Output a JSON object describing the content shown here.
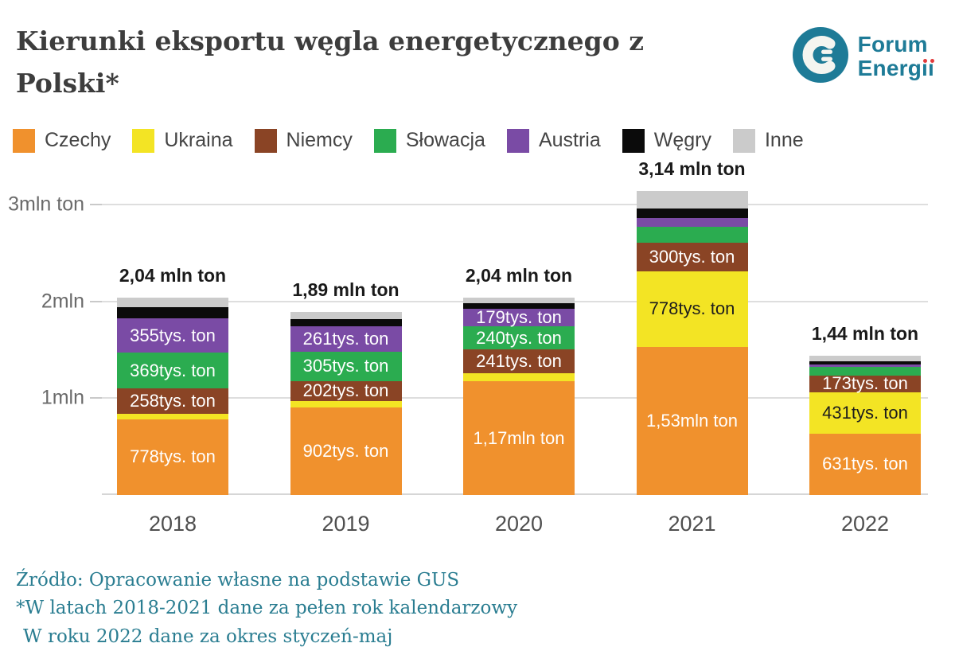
{
  "header": {
    "title_line1": "Kierunki eksportu węgla energetycznego z",
    "title_line2": "Polski*",
    "logo": {
      "line1": "Forum",
      "line2_stem": "Energ",
      "line2_dotless": "ıı",
      "brand_color": "#1e7b97",
      "dot_color": "#e23b3c"
    }
  },
  "chart_data": {
    "type": "bar",
    "subtype": "stacked",
    "title": "Kierunki eksportu węgla energetycznego z Polski*",
    "unit": "tys. ton",
    "categories": [
      "2018",
      "2019",
      "2020",
      "2021",
      "2022"
    ],
    "series": [
      {
        "name": "Czechy",
        "color": "#f0912d",
        "label_color": "#ffffff",
        "values": [
          778,
          902,
          1170,
          1530,
          631
        ],
        "labels": [
          "778tys. ton",
          "902tys. ton",
          "1,17mln ton",
          "1,53mln ton",
          "631tys. ton"
        ]
      },
      {
        "name": "Ukraina",
        "color": "#f3e424",
        "label_color": "#1d1d1d",
        "values": [
          62,
          70,
          90,
          778,
          431
        ],
        "labels": [
          "",
          "",
          "",
          "778tys. ton",
          "431tys. ton"
        ]
      },
      {
        "name": "Niemcy",
        "color": "#8a4425",
        "label_color": "#ffffff",
        "values": [
          258,
          202,
          241,
          300,
          173
        ],
        "labels": [
          "258tys. ton",
          "202tys. ton",
          "241tys. ton",
          "300tys. ton",
          "173tys. ton"
        ]
      },
      {
        "name": "Słowacja",
        "color": "#2bac50",
        "label_color": "#ffffff",
        "values": [
          369,
          305,
          240,
          160,
          85
        ],
        "labels": [
          "369tys. ton",
          "305tys. ton",
          "240tys. ton",
          "",
          ""
        ]
      },
      {
        "name": "Austria",
        "color": "#7a4ba5",
        "label_color": "#ffffff",
        "values": [
          355,
          261,
          179,
          95,
          25
        ],
        "labels": [
          "355tys. ton",
          "261tys. ton",
          "179tys. ton",
          "",
          ""
        ]
      },
      {
        "name": "Węgry",
        "color": "#0b0b0b",
        "label_color": "#ffffff",
        "values": [
          115,
          75,
          60,
          100,
          38
        ],
        "labels": [
          "",
          "",
          "",
          "",
          ""
        ]
      },
      {
        "name": "Inne",
        "color": "#cbcbcb",
        "label_color": "#1d1d1d",
        "values": [
          103,
          75,
          60,
          177,
          57
        ],
        "labels": [
          "",
          "",
          "",
          "",
          ""
        ]
      }
    ],
    "totals": [
      2040,
      1890,
      2040,
      3140,
      1440
    ],
    "total_labels": [
      "2,04 mln ton",
      "1,89 mln ton",
      "2,04 mln ton",
      "3,14 mln ton",
      "1,44 mln ton"
    ],
    "y_axis": {
      "ticks": [
        {
          "value": 1000,
          "label": "1mln"
        },
        {
          "value": 2000,
          "label": "2mln"
        },
        {
          "value": 3000,
          "label": "3mln ton"
        }
      ],
      "ylim": [
        0,
        3450
      ]
    },
    "grid": true,
    "legend_position": "top"
  },
  "footer": {
    "lines": [
      "Źródło: Opracowanie własne na podstawie GUS",
      "*W latach 2018-2021 dane za pełen rok kalendarzowy",
      "W roku 2022 dane za okres styczeń-maj"
    ]
  }
}
